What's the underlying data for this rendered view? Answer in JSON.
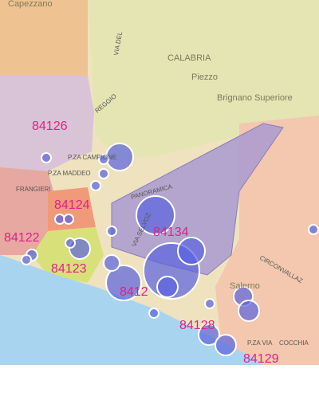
{
  "map": {
    "top_label": "Capezzano",
    "postal_codes": [
      "84126",
      "84124",
      "84122",
      "84123",
      "84134",
      "8412",
      "84128",
      "84129"
    ],
    "places": [
      "CALABRIA",
      "Piezzo",
      "Brignano Superiore",
      "Salerno"
    ],
    "streets": [
      "REGGIO",
      "VIA DEL",
      "P.ZA CAMPIONE",
      "P.ZA MADDEO",
      "FRANGIERI",
      "PANORAMICA",
      "VIA SELVOZ",
      "CIRCONVALLAZ",
      "COCCHIA",
      "P.ZA VIA"
    ]
  }
}
